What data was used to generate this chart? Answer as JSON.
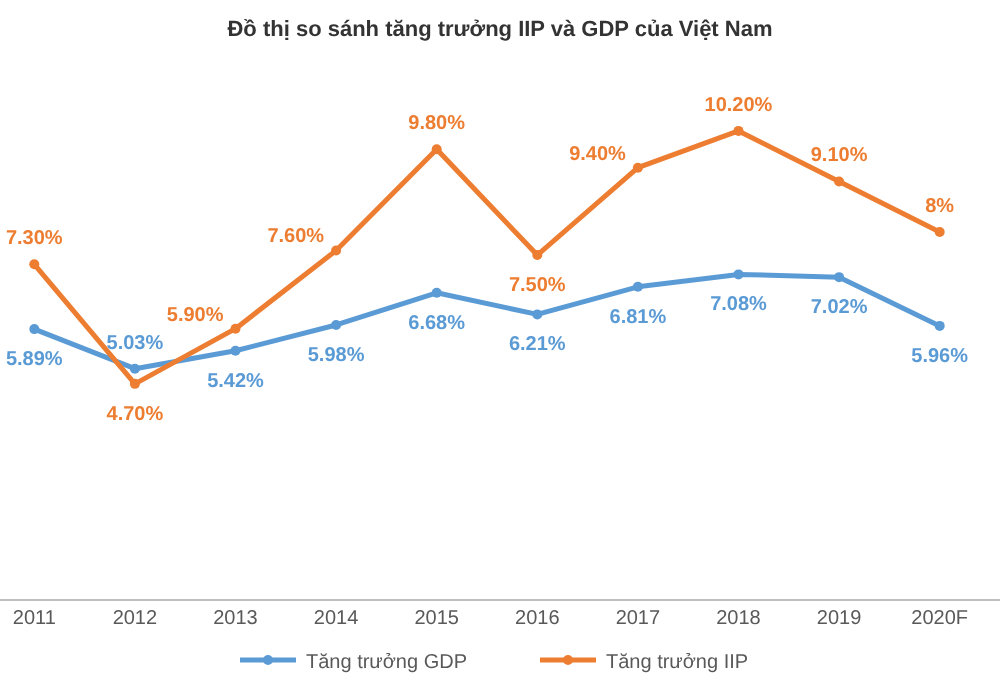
{
  "chart_data": {
    "type": "line",
    "title": "Đồ thị so sánh tăng trưởng IIP và GDP của Việt Nam",
    "categories": [
      "2011",
      "2012",
      "2013",
      "2014",
      "2015",
      "2016",
      "2017",
      "2018",
      "2019",
      "2020F"
    ],
    "series": [
      {
        "name": "Tăng trưởng GDP",
        "color": "#5b9bd5",
        "values": [
          5.89,
          5.03,
          5.42,
          5.98,
          6.68,
          6.21,
          6.81,
          7.08,
          7.02,
          5.96
        ],
        "value_labels": [
          "5.89%",
          "5.03%",
          "5.42%",
          "5.98%",
          "6.68%",
          "6.21%",
          "6.81%",
          "7.08%",
          "7.02%",
          "5.96%"
        ]
      },
      {
        "name": "Tăng trưởng IIP",
        "color": "#ed7d31",
        "values": [
          7.3,
          4.7,
          5.9,
          7.6,
          9.8,
          7.5,
          9.4,
          10.2,
          9.1,
          8
        ],
        "value_labels": [
          "7.30%",
          "4.70%",
          "5.90%",
          "7.60%",
          "9.80%",
          "7.50%",
          "9.40%",
          "10.20%",
          "9.10%",
          "8%"
        ]
      }
    ],
    "legend": "bottom",
    "marker": "circle",
    "line_style": "solid",
    "grid": false
  }
}
